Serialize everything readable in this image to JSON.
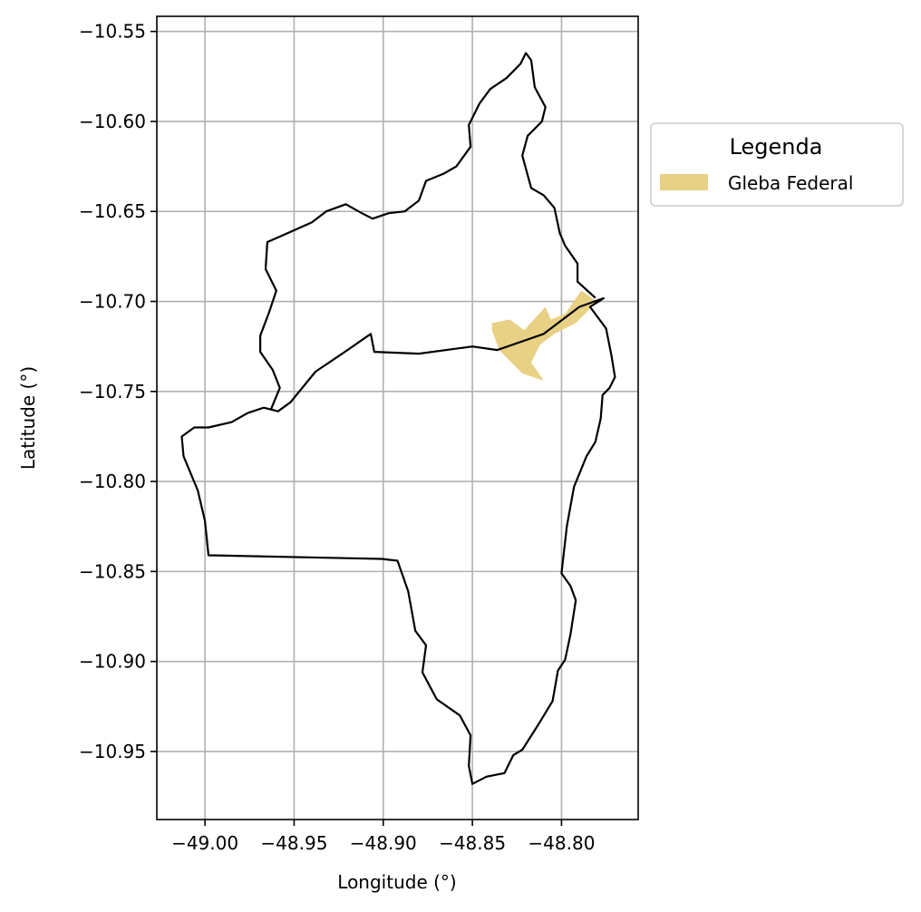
{
  "chart_data": {
    "type": "map",
    "xlabel": "Longitude (°)",
    "ylabel": "Latitude (°)",
    "xlim": [
      -49.027,
      -48.757
    ],
    "ylim": [
      -10.9878,
      -10.5416
    ],
    "xticks": [
      -49.0,
      -48.95,
      -48.9,
      -48.85,
      -48.8
    ],
    "xtick_labels": [
      "−49.00",
      "−48.95",
      "−48.90",
      "−48.85",
      "−48.80"
    ],
    "yticks": [
      -10.55,
      -10.6,
      -10.65,
      -10.7,
      -10.75,
      -10.8,
      -10.85,
      -10.9,
      -10.95
    ],
    "ytick_labels": [
      "−10.55",
      "−10.60",
      "−10.65",
      "−10.70",
      "−10.75",
      "−10.80",
      "−10.85",
      "−10.90",
      "−10.95"
    ],
    "grid": true,
    "legend": {
      "title": "Legenda",
      "placement": "outside-right",
      "entries": [
        {
          "label": "Gleba Federal",
          "color": "#e8d185"
        }
      ]
    },
    "layers": [
      {
        "name": "boundary",
        "type": "line",
        "color": "#000000",
        "coords": [
          [
            -48.776,
            -10.698
          ],
          [
            -48.784,
            -10.703
          ],
          [
            -48.775,
            -10.715
          ],
          [
            -48.772,
            -10.73
          ],
          [
            -48.77,
            -10.742
          ],
          [
            -48.773,
            -10.748
          ],
          [
            -48.777,
            -10.752
          ],
          [
            -48.778,
            -10.765
          ],
          [
            -48.781,
            -10.778
          ],
          [
            -48.786,
            -10.786
          ],
          [
            -48.793,
            -10.803
          ],
          [
            -48.797,
            -10.825
          ],
          [
            -48.8,
            -10.851
          ],
          [
            -48.795,
            -10.858
          ],
          [
            -48.792,
            -10.866
          ],
          [
            -48.795,
            -10.885
          ],
          [
            -48.798,
            -10.899
          ],
          [
            -48.802,
            -10.905
          ],
          [
            -48.805,
            -10.922
          ],
          [
            -48.813,
            -10.935
          ],
          [
            -48.822,
            -10.949
          ],
          [
            -48.827,
            -10.952
          ],
          [
            -48.832,
            -10.962
          ],
          [
            -48.842,
            -10.964
          ],
          [
            -48.85,
            -10.968
          ],
          [
            -48.852,
            -10.958
          ],
          [
            -48.851,
            -10.941
          ],
          [
            -48.857,
            -10.93
          ],
          [
            -48.87,
            -10.921
          ],
          [
            -48.878,
            -10.906
          ],
          [
            -48.876,
            -10.891
          ],
          [
            -48.882,
            -10.883
          ],
          [
            -48.886,
            -10.861
          ],
          [
            -48.892,
            -10.844
          ],
          [
            -48.901,
            -10.843
          ],
          [
            -48.998,
            -10.841
          ],
          [
            -49.0,
            -10.822
          ],
          [
            -49.004,
            -10.805
          ],
          [
            -49.012,
            -10.786
          ],
          [
            -49.013,
            -10.775
          ],
          [
            -49.006,
            -10.77
          ],
          [
            -48.998,
            -10.77
          ],
          [
            -48.985,
            -10.767
          ],
          [
            -48.976,
            -10.762
          ],
          [
            -48.967,
            -10.759
          ],
          [
            -48.959,
            -10.761
          ],
          [
            -48.952,
            -10.756
          ],
          [
            -48.938,
            -10.739
          ],
          [
            -48.92,
            -10.727
          ],
          [
            -48.907,
            -10.718
          ],
          [
            -48.905,
            -10.728
          ],
          [
            -48.88,
            -10.729
          ],
          [
            -48.85,
            -10.725
          ],
          [
            -48.836,
            -10.727
          ],
          [
            -48.81,
            -10.718
          ],
          [
            -48.79,
            -10.703
          ],
          [
            -48.776,
            -10.698
          ]
        ]
      },
      {
        "name": "boundary-north",
        "type": "line",
        "color": "#000000",
        "coords": [
          [
            -48.963,
            -10.76
          ],
          [
            -48.958,
            -10.748
          ],
          [
            -48.962,
            -10.738
          ],
          [
            -48.969,
            -10.728
          ],
          [
            -48.969,
            -10.719
          ],
          [
            -48.964,
            -10.706
          ],
          [
            -48.96,
            -10.694
          ],
          [
            -48.966,
            -10.682
          ],
          [
            -48.965,
            -10.667
          ],
          [
            -48.958,
            -10.664
          ],
          [
            -48.94,
            -10.656
          ],
          [
            -48.932,
            -10.65
          ],
          [
            -48.921,
            -10.646
          ],
          [
            -48.912,
            -10.651
          ],
          [
            -48.906,
            -10.654
          ],
          [
            -48.897,
            -10.651
          ],
          [
            -48.888,
            -10.65
          ],
          [
            -48.88,
            -10.644
          ],
          [
            -48.876,
            -10.633
          ],
          [
            -48.866,
            -10.629
          ],
          [
            -48.859,
            -10.625
          ],
          [
            -48.851,
            -10.614
          ],
          [
            -48.852,
            -10.602
          ],
          [
            -48.846,
            -10.59
          ],
          [
            -48.84,
            -10.582
          ],
          [
            -48.831,
            -10.576
          ],
          [
            -48.823,
            -10.568
          ],
          [
            -48.82,
            -10.562
          ],
          [
            -48.817,
            -10.566
          ],
          [
            -48.815,
            -10.581
          ],
          [
            -48.809,
            -10.592
          ],
          [
            -48.811,
            -10.6
          ],
          [
            -48.819,
            -10.608
          ],
          [
            -48.822,
            -10.619
          ],
          [
            -48.817,
            -10.637
          ],
          [
            -48.81,
            -10.641
          ],
          [
            -48.804,
            -10.648
          ],
          [
            -48.801,
            -10.662
          ],
          [
            -48.798,
            -10.669
          ],
          [
            -48.791,
            -10.679
          ],
          [
            -48.791,
            -10.689
          ],
          [
            -48.781,
            -10.698
          ]
        ]
      },
      {
        "name": "Gleba Federal",
        "type": "polygon",
        "color": "#e8d185",
        "coords": [
          [
            -48.839,
            -10.712
          ],
          [
            -48.829,
            -10.71
          ],
          [
            -48.821,
            -10.716
          ],
          [
            -48.809,
            -10.703
          ],
          [
            -48.806,
            -10.71
          ],
          [
            -48.798,
            -10.707
          ],
          [
            -48.789,
            -10.694
          ],
          [
            -48.78,
            -10.7
          ],
          [
            -48.792,
            -10.712
          ],
          [
            -48.804,
            -10.718
          ],
          [
            -48.812,
            -10.724
          ],
          [
            -48.817,
            -10.734
          ],
          [
            -48.81,
            -10.744
          ],
          [
            -48.822,
            -10.74
          ],
          [
            -48.835,
            -10.727
          ],
          [
            -48.839,
            -10.716
          ]
        ]
      }
    ]
  }
}
